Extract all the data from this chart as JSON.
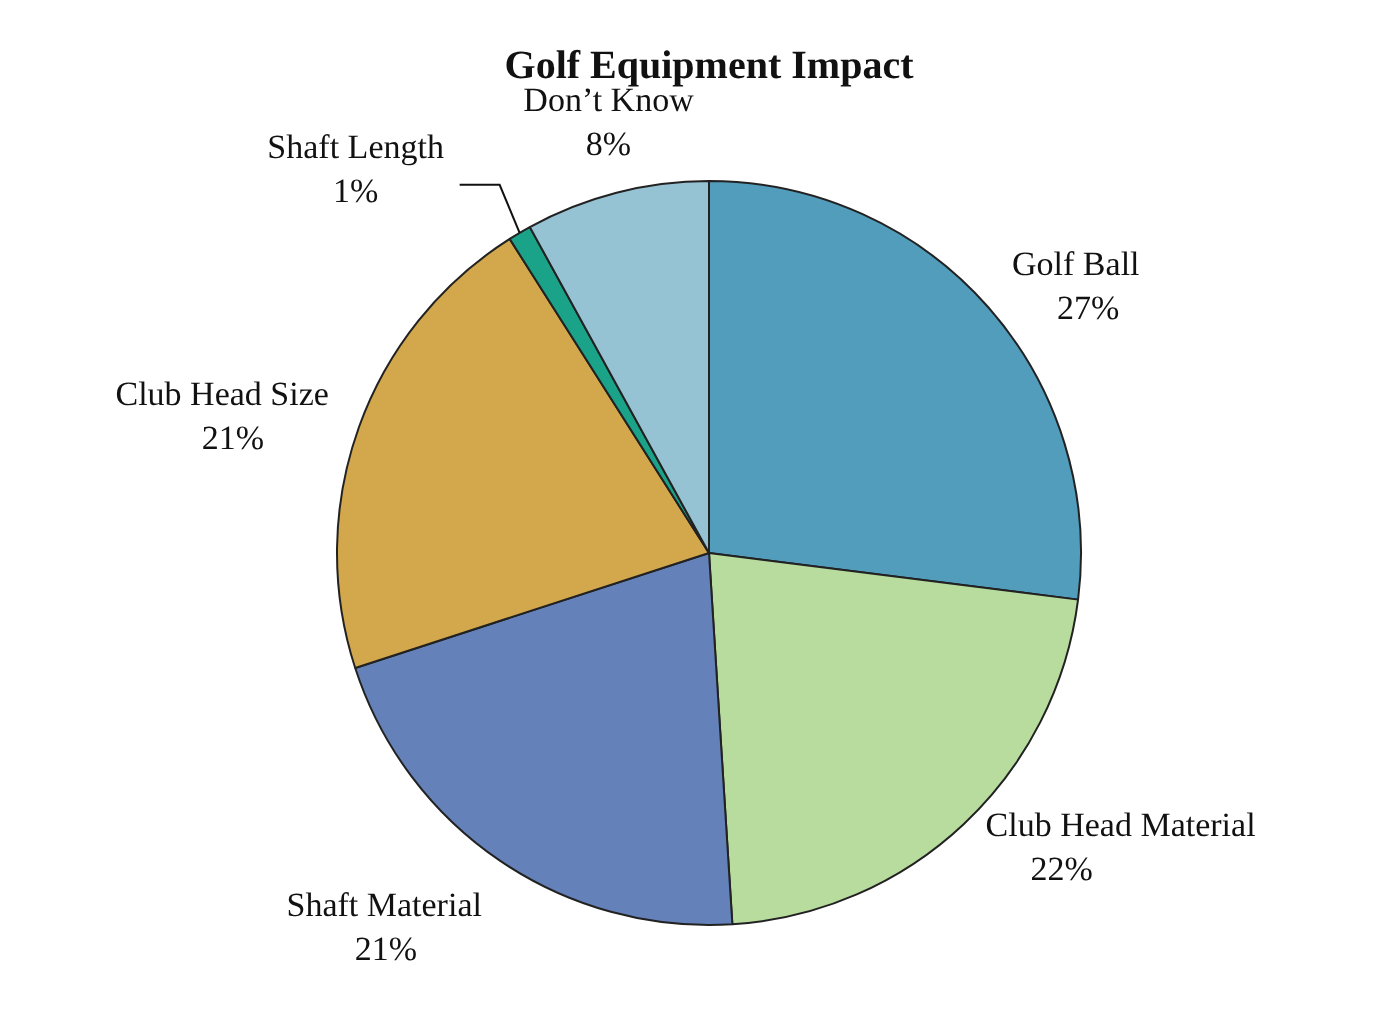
{
  "chart_data": {
    "type": "pie",
    "title": "Golf Equipment Impact",
    "categories": [
      "Golf Ball",
      "Club Head Material",
      "Shaft Material",
      "Club Head Size",
      "Shaft Length",
      "Don’t Know"
    ],
    "values": [
      27,
      22,
      21,
      21,
      1,
      8
    ],
    "colors": [
      "#519dbb",
      "#b8dc9e",
      "#6482b9",
      "#d3a84c",
      "#1aa388",
      "#96c3d3"
    ],
    "value_labels": [
      "27%",
      "22%",
      "21%",
      "21%",
      "1%",
      "8%"
    ],
    "legend": false
  }
}
